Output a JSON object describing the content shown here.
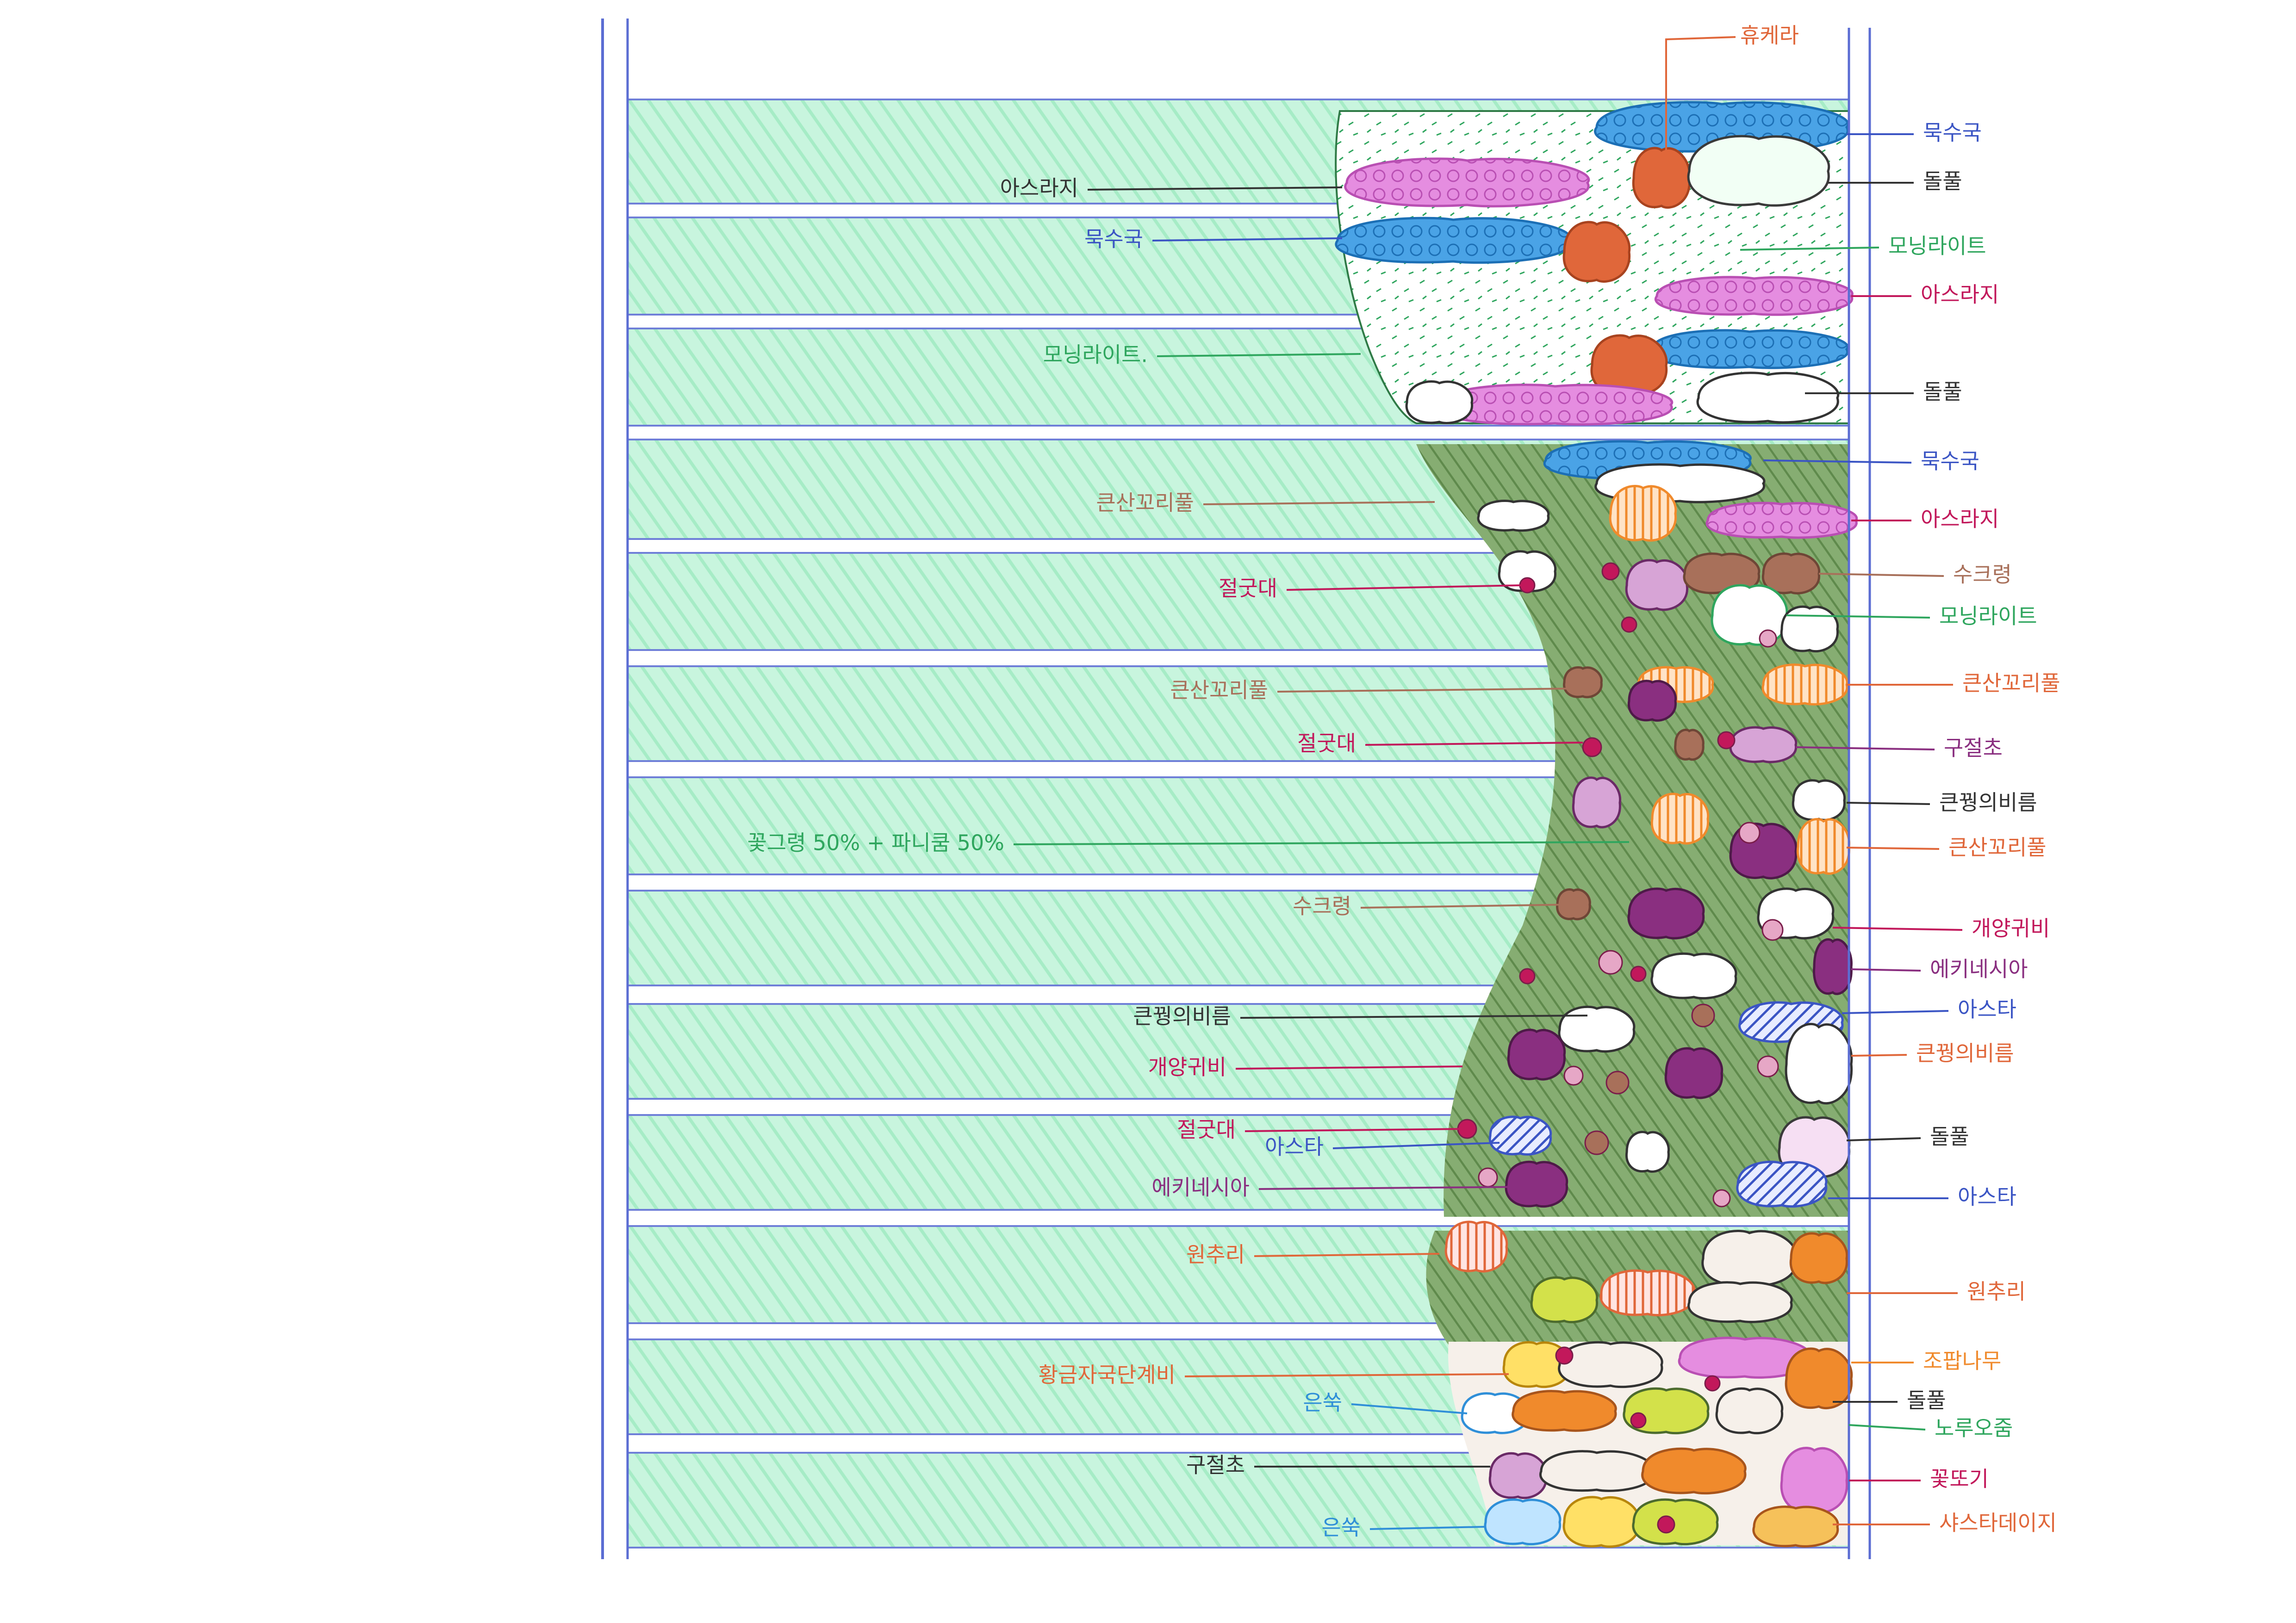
{
  "colors": {
    "paper": "#ffffff",
    "lawn": "#b9f2d4",
    "rule": "#6f7fd8",
    "dark_green": "#6f9a5c",
    "blue": "#2f8fd8",
    "pink": "#d96bd0",
    "red": "#e0673a",
    "green": "#2fa65e",
    "purple": "#8a2f80",
    "orange": "#f08a2c",
    "magenta": "#c2185b",
    "brown": "#a8705a",
    "navy": "#3b55c4",
    "dark": "#333333"
  },
  "labels": {
    "left": [
      {
        "id": "asragi-1",
        "text": "아스라지",
        "color": "dark"
      },
      {
        "id": "mugsugug-1",
        "text": "묵수국",
        "color": "navy"
      },
      {
        "id": "morning-light-1",
        "text": "모닝라이트.",
        "color": "green"
      },
      {
        "id": "keunsan-1",
        "text": "큰산꼬리풀",
        "color": "brown"
      },
      {
        "id": "jeolgutdae-1",
        "text": "절굿대",
        "color": "magenta"
      },
      {
        "id": "keunsan-2",
        "text": "큰산꼬리풀",
        "color": "brown"
      },
      {
        "id": "jeolgutdae-2",
        "text": "절굿대",
        "color": "magenta"
      },
      {
        "id": "mix",
        "text": "꽃그령 50% + 파니쿰 50%",
        "color": "green"
      },
      {
        "id": "sukreong-1",
        "text": "수크령",
        "color": "brown"
      },
      {
        "id": "keungeui-1",
        "text": "큰꿩의비름",
        "color": "dark"
      },
      {
        "id": "gaeyang-1",
        "text": "개양귀비",
        "color": "magenta"
      },
      {
        "id": "jeolgutdae-3",
        "text": "절굿대",
        "color": "magenta"
      },
      {
        "id": "aster-1",
        "text": "아스타",
        "color": "navy"
      },
      {
        "id": "echinacea-1",
        "text": "에키네시아",
        "color": "purple"
      },
      {
        "id": "wonchuri-1",
        "text": "원추리",
        "color": "red"
      },
      {
        "id": "golden",
        "text": "황금자국단계비",
        "color": "red"
      },
      {
        "id": "eunssuk-1",
        "text": "은쑥",
        "color": "blue"
      },
      {
        "id": "gujeolcho-1",
        "text": "구절초",
        "color": "dark"
      },
      {
        "id": "eunssuk-2",
        "text": "은쑥",
        "color": "blue"
      }
    ],
    "right": [
      {
        "id": "heuchera",
        "text": "휴케라",
        "color": "red"
      },
      {
        "id": "mugsugug-2",
        "text": "묵수국",
        "color": "navy"
      },
      {
        "id": "dolpul-1",
        "text": "돌풀",
        "color": "dark"
      },
      {
        "id": "morning-light-2",
        "text": "모닝라이트",
        "color": "green"
      },
      {
        "id": "asragi-2",
        "text": "아스라지",
        "color": "magenta"
      },
      {
        "id": "dolpul-2",
        "text": "돌풀",
        "color": "dark"
      },
      {
        "id": "mugsugug-3",
        "text": "묵수국",
        "color": "navy"
      },
      {
        "id": "asragi-3",
        "text": "아스라지",
        "color": "magenta"
      },
      {
        "id": "sukreong-2",
        "text": "수크령",
        "color": "brown"
      },
      {
        "id": "morning-light-3",
        "text": "모닝라이트",
        "color": "green"
      },
      {
        "id": "keunsan-3",
        "text": "큰산꼬리풀",
        "color": "red"
      },
      {
        "id": "gujeolcho-2",
        "text": "구절초",
        "color": "purple"
      },
      {
        "id": "keungeui-2",
        "text": "큰꿩의비름",
        "color": "dark"
      },
      {
        "id": "keunsan-4",
        "text": "큰산꼬리풀",
        "color": "red"
      },
      {
        "id": "gaeyang-2",
        "text": "개양귀비",
        "color": "magenta"
      },
      {
        "id": "echinacea-2",
        "text": "에키네시아",
        "color": "purple"
      },
      {
        "id": "aster-2",
        "text": "아스타",
        "color": "navy"
      },
      {
        "id": "keungeui-3",
        "text": "큰꿩의비름",
        "color": "red"
      },
      {
        "id": "dolpul-3",
        "text": "돌풀",
        "color": "dark"
      },
      {
        "id": "aster-3",
        "text": "아스타",
        "color": "navy"
      },
      {
        "id": "wonchuri-2",
        "text": "원추리",
        "color": "red"
      },
      {
        "id": "jomap",
        "text": "조팝나무",
        "color": "orange"
      },
      {
        "id": "dolpul-4",
        "text": "돌풀",
        "color": "dark"
      },
      {
        "id": "norumojum",
        "text": "노루오줌",
        "color": "green"
      },
      {
        "id": "kkottogi",
        "text": "꽃또기",
        "color": "magenta"
      },
      {
        "id": "sasta",
        "text": "샤스타데이지",
        "color": "red"
      }
    ]
  }
}
